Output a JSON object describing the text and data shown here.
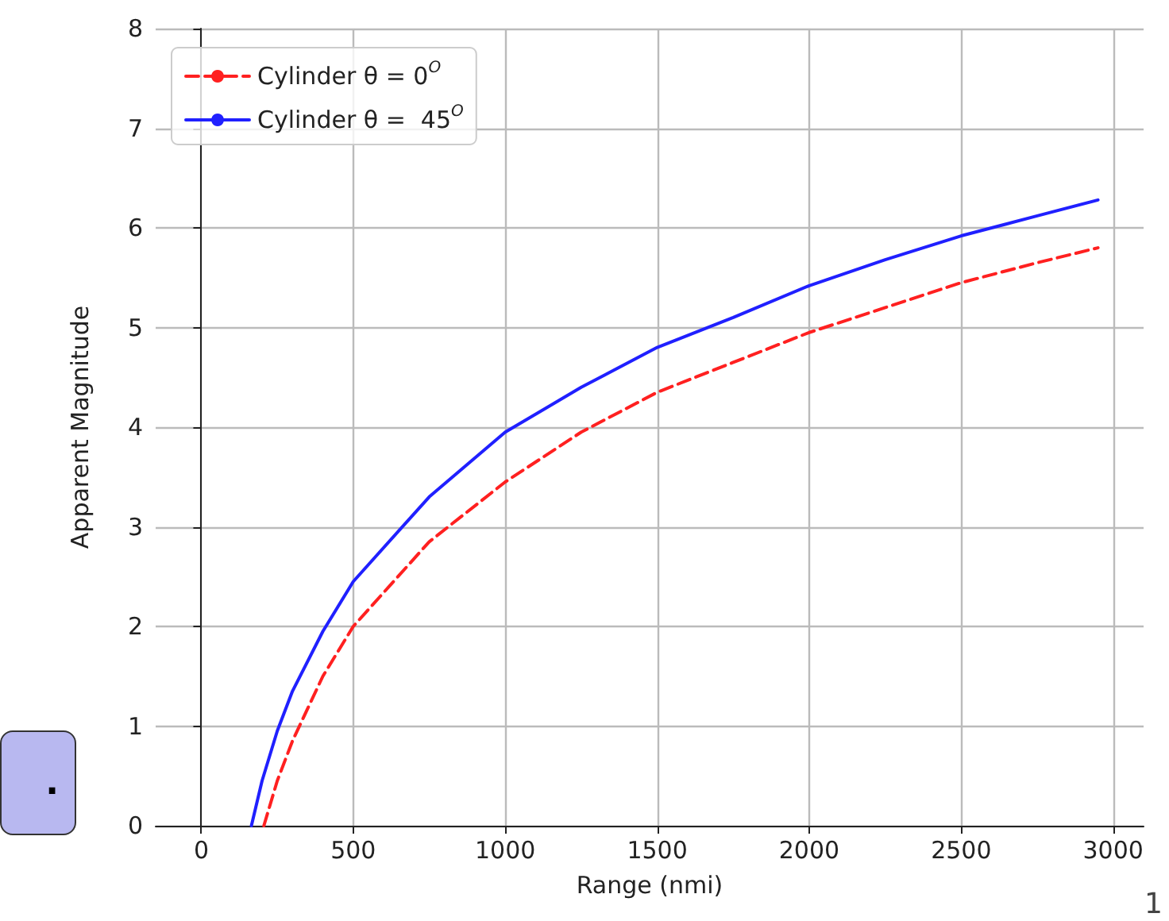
{
  "chart_data": {
    "type": "line",
    "xlabel": "Range (nmi)",
    "ylabel": "Apparent Magnitude",
    "xlim": [
      -150,
      3100
    ],
    "xticks": [
      0,
      500,
      1000,
      1500,
      2000,
      2500,
      3000
    ],
    "ylim": [
      0,
      8
    ],
    "yticks": [
      0,
      1,
      2,
      3,
      4,
      5,
      6,
      7,
      8
    ],
    "grid": true,
    "legend": "top left",
    "series": [
      {
        "name": "Cylinder θ = 0$^{O}$",
        "color": "#ff2020",
        "line_style": "dashed",
        "x": [
          206,
          250,
          300,
          400,
          500,
          750,
          1000,
          1250,
          1500,
          1750,
          2000,
          2250,
          2500,
          2750,
          2950
        ],
        "values": [
          0,
          0.45,
          0.85,
          1.5,
          2.0,
          2.85,
          3.45,
          3.95,
          4.35,
          4.65,
          4.95,
          5.2,
          5.45,
          5.65,
          5.8
        ]
      },
      {
        "name": "Cylinder θ =  45$^{O}$",
        "color": "#2020ff",
        "line_style": "solid",
        "x": [
          165,
          200,
          250,
          300,
          400,
          500,
          750,
          1000,
          1250,
          1500,
          1750,
          2000,
          2250,
          2500,
          2750,
          2950
        ],
        "values": [
          0,
          0.45,
          0.95,
          1.35,
          1.95,
          2.45,
          3.3,
          3.95,
          4.4,
          4.8,
          5.1,
          5.42,
          5.68,
          5.92,
          6.12,
          6.28
        ]
      }
    ],
    "annotations": [
      ".",
      "1"
    ]
  }
}
